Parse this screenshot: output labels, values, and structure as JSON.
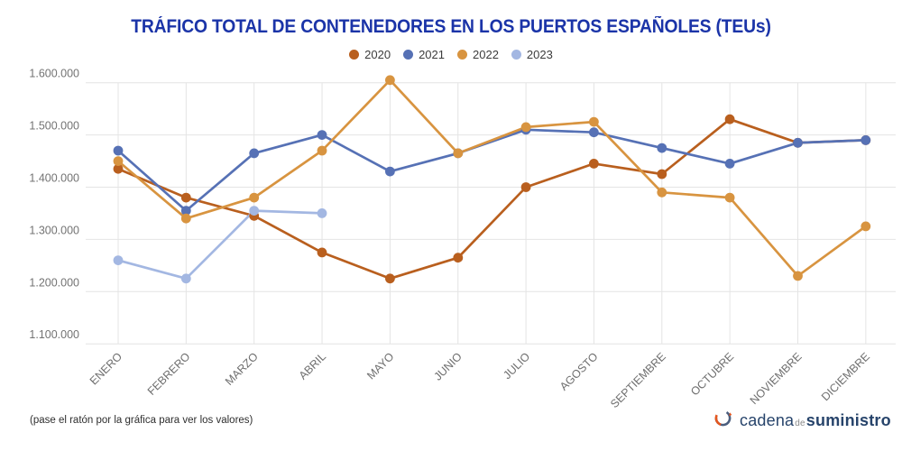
{
  "title": "TRÁFICO TOTAL DE CONTENEDORES EN LOS PUERTOS ESPAÑOLES (TEUs)",
  "footnote": "(pase el ratón por la gráfica para ver los valores)",
  "logo": {
    "text_main": "cadena",
    "text_mid": "de",
    "text_last": "suministro",
    "text_color": "#27446b",
    "icon_blue": "#4b5e7e",
    "icon_orange": "#e4571f"
  },
  "colors": {
    "title": "#1b34a8",
    "gridline": "#e4e4e4",
    "axis_label": "#737373",
    "month_label": "#6e6e6e"
  },
  "chart_data": {
    "type": "line",
    "title": "TRÁFICO TOTAL DE CONTENEDORES EN LOS PUERTOS ESPAÑOLES (TEUs)",
    "categories": [
      "ENERO",
      "FEBRERO",
      "MARZO",
      "ABRIL",
      "MAYO",
      "JUNIO",
      "JULIO",
      "AGOSTO",
      "SEPTIEMBRE",
      "OCTUBRE",
      "NOVIEMBRE",
      "DICIEMBRE"
    ],
    "series": [
      {
        "name": "2020",
        "color": "#b95f1e",
        "values": [
          1435000,
          1380000,
          1345000,
          1275000,
          1225000,
          1265000,
          1400000,
          1445000,
          1425000,
          1530000,
          1485000,
          1490000
        ]
      },
      {
        "name": "2021",
        "color": "#5671b5",
        "values": [
          1470000,
          1355000,
          1465000,
          1500000,
          1430000,
          1465000,
          1510000,
          1505000,
          1475000,
          1445000,
          1485000,
          1490000
        ]
      },
      {
        "name": "2022",
        "color": "#d89440",
        "values": [
          1450000,
          1340000,
          1380000,
          1470000,
          1605000,
          1465000,
          1515000,
          1525000,
          1390000,
          1380000,
          1230000,
          1325000
        ]
      },
      {
        "name": "2023",
        "color": "#a3b7e2",
        "values": [
          1260000,
          1225000,
          1355000,
          1350000,
          null,
          null,
          null,
          null,
          null,
          null,
          null,
          null
        ]
      }
    ],
    "ylim": [
      1100000,
      1600000
    ],
    "ytick_step": 100000,
    "ytick_labels": [
      "1.100.000",
      "1.200.000",
      "1.300.000",
      "1.400.000",
      "1.500.000",
      "1.600.000"
    ],
    "grid": true,
    "legend_position": "top",
    "xlabel": "",
    "ylabel": ""
  }
}
